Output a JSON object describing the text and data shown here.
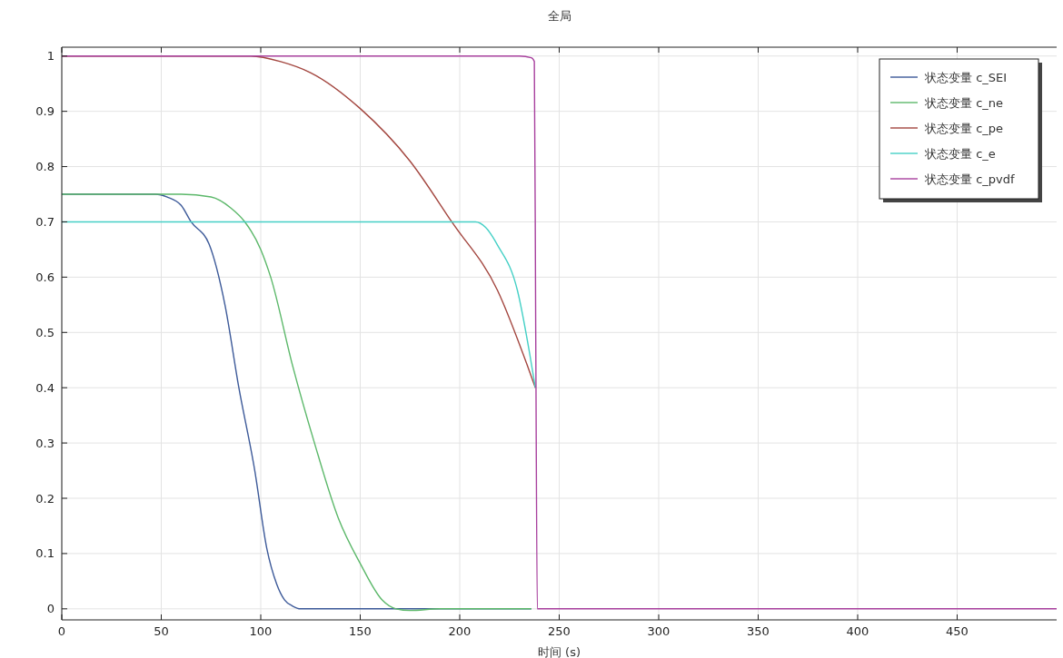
{
  "chart_data": {
    "type": "line",
    "title": "全局",
    "xlabel": "时间 (s)",
    "xlim": [
      0,
      500
    ],
    "ylim": [
      -0.02,
      1.016
    ],
    "xticks": [
      0,
      50,
      100,
      150,
      200,
      250,
      300,
      350,
      400,
      450
    ],
    "yticks": [
      0,
      {
        "value": 0.1,
        "label": "0.1"
      },
      {
        "value": 0.2,
        "label": "0.2"
      },
      {
        "value": 0.3,
        "label": "0.3"
      },
      {
        "value": 0.4,
        "label": "0.4"
      },
      {
        "value": 0.5,
        "label": "0.5"
      },
      {
        "value": 0.6,
        "label": "0.6"
      },
      {
        "value": 0.7,
        "label": "0.7"
      },
      {
        "value": 0.8,
        "label": "0.8"
      },
      {
        "value": 0.9,
        "label": "0.9"
      },
      1
    ],
    "grid": true,
    "legend": "top right",
    "series": [
      {
        "name": "状态变量 c_SEI",
        "color": "#3d5a99",
        "x": [
          0,
          47,
          53,
          60,
          65,
          74,
          82,
          89,
          97,
          103,
          108,
          112,
          116,
          120,
          130,
          236
        ],
        "values": [
          0.75,
          0.75,
          0.745,
          0.73,
          0.7,
          0.66,
          0.55,
          0.4,
          0.25,
          0.11,
          0.045,
          0.016,
          0.005,
          0,
          0,
          0
        ]
      },
      {
        "name": "状态变量 c_ne",
        "color": "#5cb86a",
        "x": [
          0,
          60,
          75,
          85,
          92,
          100,
          105,
          116,
          127,
          139,
          150,
          161,
          168,
          175,
          190,
          236
        ],
        "values": [
          0.75,
          0.75,
          0.745,
          0.725,
          0.7,
          0.65,
          0.6,
          0.44,
          0.3,
          0.164,
          0.082,
          0.016,
          0,
          -0.003,
          0,
          0
        ]
      },
      {
        "name": "状态变量 c_pe",
        "color": "#a3463f",
        "x": [
          0,
          95,
          110,
          125,
          150,
          175,
          196,
          219,
          234,
          238
        ],
        "values": [
          1,
          1,
          0.99,
          0.97,
          0.905,
          0.81,
          0.7,
          0.576,
          0.44,
          0.4
        ]
      },
      {
        "name": "状态变量 c_e",
        "color": "#45d0c6",
        "x": [
          0,
          208,
          213,
          219,
          229,
          235,
          238
        ],
        "values": [
          0.7,
          0.7,
          0.69,
          0.658,
          0.576,
          0.465,
          0.4
        ]
      },
      {
        "name": "状态变量 c_pvdf",
        "color": "#a8409e",
        "x": [
          0,
          230,
          236,
          237.5,
          238.2,
          239,
          500
        ],
        "values": [
          1,
          1,
          0.997,
          0.99,
          0.5,
          0,
          0
        ]
      }
    ]
  }
}
